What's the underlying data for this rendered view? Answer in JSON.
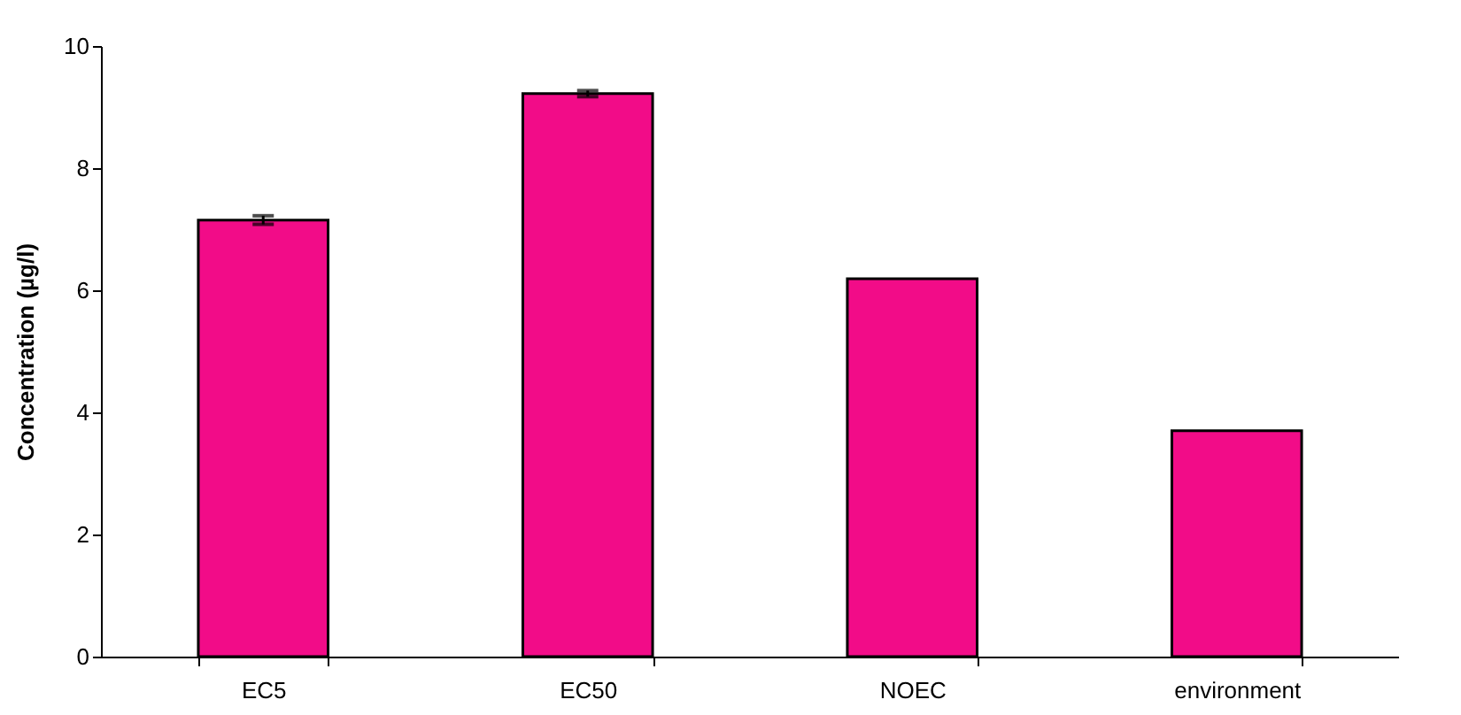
{
  "chart_data": {
    "type": "bar",
    "ylabel": "Concentration (µg/l)",
    "categories": [
      "EC5",
      "EC50",
      "NOEC",
      "environment"
    ],
    "values": [
      7.15,
      9.22,
      6.19,
      3.7
    ],
    "errors": [
      0.07,
      0.05,
      null,
      null
    ],
    "color": "#f20c88",
    "ylim": [
      0,
      10
    ],
    "yticks": [
      0,
      2,
      4,
      6,
      8,
      10
    ],
    "grid": false
  }
}
